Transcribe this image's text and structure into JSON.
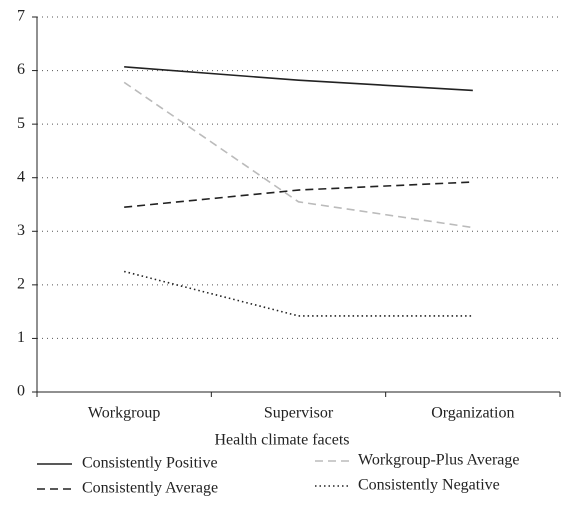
{
  "chart_data": {
    "type": "line",
    "x_label": "Health climate facets",
    "categories": [
      "Workgroup",
      "Supervisor",
      "Organization"
    ],
    "series": [
      {
        "name": "Consistently Positive",
        "color": "#222222",
        "dash": "solid",
        "values": [
          6.07,
          5.82,
          5.63
        ]
      },
      {
        "name": "Workgroup-Plus Average",
        "color": "#bbbbbb",
        "dash": "dashed",
        "values": [
          5.78,
          3.55,
          3.07
        ]
      },
      {
        "name": "Consistently Average",
        "color": "#222222",
        "dash": "dashed",
        "values": [
          3.45,
          3.77,
          3.92
        ]
      },
      {
        "name": "Consistently Negative",
        "color": "#222222",
        "dash": "dotted",
        "values": [
          2.25,
          1.42,
          1.42
        ]
      }
    ],
    "ylim": [
      0,
      7
    ],
    "yticks": [
      0,
      1,
      2,
      3,
      4,
      5,
      6,
      7
    ],
    "grid": true,
    "legend": "bottom"
  }
}
